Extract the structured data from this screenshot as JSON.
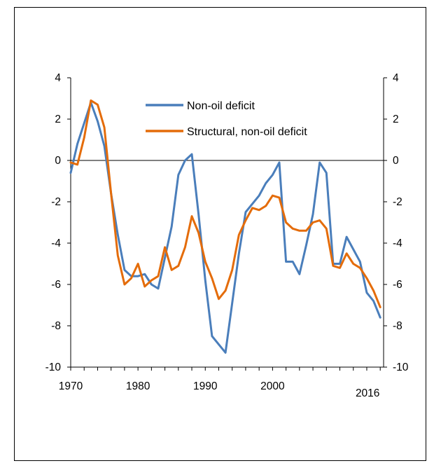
{
  "colors": {
    "non_oil": "#4a7ebb",
    "structural": "#e46c0a",
    "axis": "#000000"
  },
  "chart_data": {
    "type": "line",
    "title": "",
    "xlabel": "",
    "ylabel": "",
    "ylim": [
      -10,
      4
    ],
    "yticks": [
      4,
      2,
      0,
      -2,
      -4,
      -6,
      -8,
      -10
    ],
    "ytick_labels": [
      "4",
      "2",
      "0",
      "-2",
      "-4",
      "-6",
      "-8",
      "-10"
    ],
    "xtick_labels": [
      "1970",
      "1980",
      "1990",
      "2000",
      "2016"
    ],
    "legend_position": "top-center",
    "grid": false,
    "x": [
      1970,
      1971,
      1972,
      1973,
      1974,
      1975,
      1976,
      1977,
      1978,
      1979,
      1980,
      1981,
      1982,
      1983,
      1984,
      1985,
      1986,
      1987,
      1988,
      1989,
      1990,
      1991,
      1992,
      1993,
      1994,
      1995,
      1996,
      1997,
      1998,
      1999,
      2000,
      2001,
      2002,
      2003,
      2004,
      2005,
      2006,
      2007,
      2008,
      2009,
      2010,
      2011,
      2012,
      2013,
      2014,
      2015,
      2016
    ],
    "series": [
      {
        "name": "Non-oil deficit",
        "values": [
          -0.6,
          0.8,
          1.8,
          2.8,
          1.9,
          0.7,
          -1.6,
          -3.6,
          -5.3,
          -5.6,
          -5.6,
          -5.5,
          -6.0,
          -6.2,
          -4.7,
          -3.2,
          -0.7,
          0.0,
          0.3,
          -2.6,
          -5.8,
          -8.5,
          -8.9,
          -9.3,
          -6.9,
          -4.5,
          -2.5,
          -2.1,
          -1.7,
          -1.1,
          -0.7,
          -0.1,
          -4.9,
          -4.9,
          -5.5,
          -4.1,
          -2.6,
          -0.1,
          -0.6,
          -5.0,
          -5.0,
          -3.7,
          -4.3,
          -4.9,
          -6.4,
          -6.8,
          -7.6
        ]
      },
      {
        "name": "Structural, non-oil deficit",
        "values": [
          -0.1,
          -0.2,
          1.1,
          2.9,
          2.7,
          1.6,
          -1.6,
          -4.6,
          -6.0,
          -5.7,
          -5.0,
          -6.1,
          -5.8,
          -5.6,
          -4.2,
          -5.3,
          -5.1,
          -4.2,
          -2.7,
          -3.5,
          -4.9,
          -5.7,
          -6.7,
          -6.3,
          -5.3,
          -3.6,
          -2.9,
          -2.3,
          -2.4,
          -2.2,
          -1.7,
          -1.8,
          -3.0,
          -3.3,
          -3.4,
          -3.4,
          -3.0,
          -2.9,
          -3.3,
          -5.1,
          -5.2,
          -4.5,
          -5.0,
          -5.2,
          -5.7,
          -6.3,
          -7.1
        ]
      }
    ]
  }
}
